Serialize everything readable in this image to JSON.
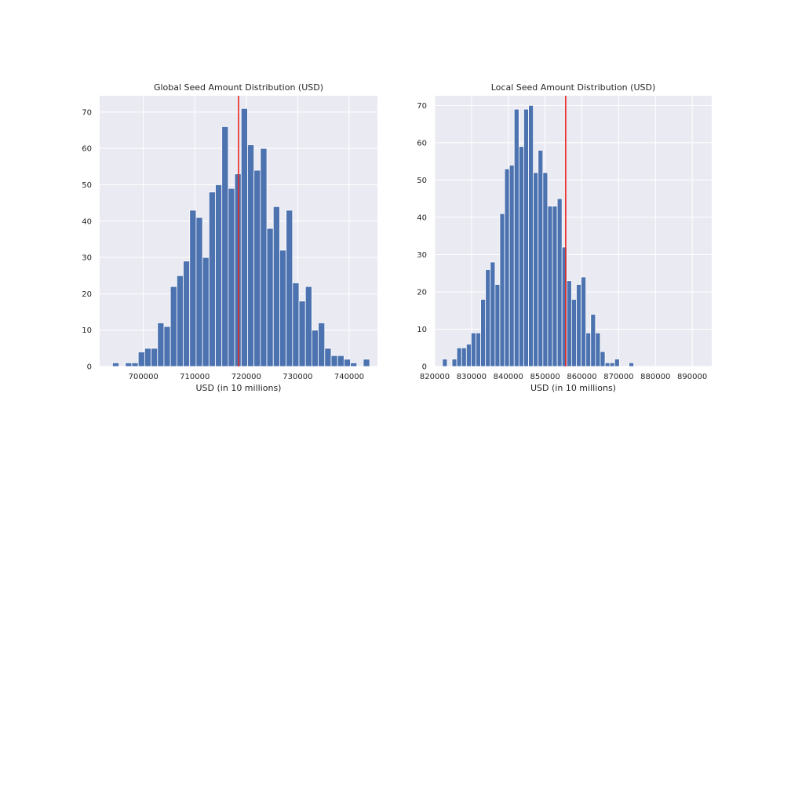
{
  "chart_data": [
    {
      "type": "bar",
      "title": "Global Seed Amount Distribution (USD)",
      "xlabel": "USD (in 10 millions)",
      "ylabel": "",
      "bar_color": "#4c72b0",
      "line_color": "#e8261e",
      "background": "#eaeaf2",
      "grid": true,
      "xlim": [
        691500,
        745500
      ],
      "ylim": [
        0,
        74.5
      ],
      "xticks": [
        700000,
        710000,
        720000,
        730000,
        740000
      ],
      "xtick_labels": [
        "700000",
        "710000",
        "720000",
        "730000",
        "740000"
      ],
      "yticks": [
        0,
        10,
        20,
        30,
        40,
        50,
        60,
        70
      ],
      "ytick_labels": [
        "0",
        "10",
        "20",
        "30",
        "40",
        "50",
        "60",
        "70"
      ],
      "bin_start": 694000,
      "bin_width": 1250,
      "values": [
        1,
        0,
        1,
        1,
        4,
        5,
        5,
        12,
        11,
        22,
        25,
        29,
        43,
        41,
        30,
        48,
        50,
        66,
        49,
        53,
        71,
        61,
        54,
        60,
        38,
        44,
        32,
        43,
        23,
        18,
        22,
        10,
        12,
        5,
        3,
        3,
        2,
        1,
        0,
        2
      ],
      "mean_line": 718500
    },
    {
      "type": "bar",
      "title": "Local Seed Amount Distribution (USD)",
      "xlabel": "USD (in 10 millions)",
      "ylabel": "",
      "bar_color": "#4c72b0",
      "line_color": "#e8261e",
      "background": "#eaeaf2",
      "grid": true,
      "xlim": [
        820000,
        895300
      ],
      "ylim": [
        0,
        72.6
      ],
      "xticks": [
        820000,
        830000,
        840000,
        850000,
        860000,
        870000,
        880000,
        890000
      ],
      "xtick_labels": [
        "820000",
        "830000",
        "840000",
        "850000",
        "860000",
        "870000",
        "880000",
        "890000"
      ],
      "yticks": [
        0,
        10,
        20,
        30,
        40,
        50,
        60,
        70
      ],
      "ytick_labels": [
        "0",
        "10",
        "20",
        "30",
        "40",
        "50",
        "60",
        "70"
      ],
      "bin_start": 822100,
      "bin_width": 1300,
      "values": [
        2,
        0,
        2,
        5,
        5,
        6,
        9,
        9,
        18,
        26,
        28,
        22,
        41,
        53,
        54,
        69,
        59,
        69,
        70,
        52,
        58,
        52,
        43,
        43,
        45,
        32,
        23,
        18,
        22,
        24,
        9,
        14,
        9,
        4,
        1,
        1,
        2,
        0,
        0,
        1
      ],
      "mean_line": 855600
    }
  ]
}
